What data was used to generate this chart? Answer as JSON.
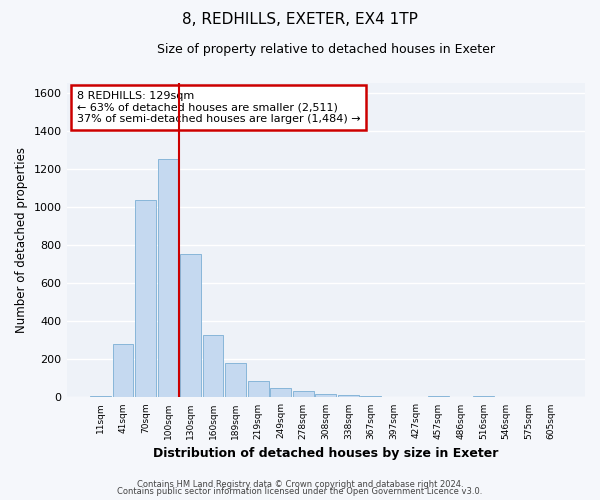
{
  "title": "8, REDHILLS, EXETER, EX4 1TP",
  "subtitle": "Size of property relative to detached houses in Exeter",
  "xlabel": "Distribution of detached houses by size in Exeter",
  "ylabel": "Number of detached properties",
  "bar_labels": [
    "11sqm",
    "41sqm",
    "70sqm",
    "100sqm",
    "130sqm",
    "160sqm",
    "189sqm",
    "219sqm",
    "249sqm",
    "278sqm",
    "308sqm",
    "338sqm",
    "367sqm",
    "397sqm",
    "427sqm",
    "457sqm",
    "486sqm",
    "516sqm",
    "546sqm",
    "575sqm",
    "605sqm"
  ],
  "bar_values": [
    10,
    280,
    1035,
    1250,
    755,
    330,
    180,
    85,
    50,
    35,
    20,
    15,
    10,
    0,
    0,
    10,
    0,
    10,
    0,
    0,
    0
  ],
  "bar_color": "#c5d9f0",
  "bar_edge_color": "#7bafd4",
  "plot_bg_color": "#eef2f8",
  "fig_bg_color": "#f5f7fb",
  "grid_color": "#ffffff",
  "ylim": [
    0,
    1650
  ],
  "yticks": [
    0,
    200,
    400,
    600,
    800,
    1000,
    1200,
    1400,
    1600
  ],
  "property_line_color": "#cc0000",
  "annotation_title": "8 REDHILLS: 129sqm",
  "annotation_line1": "← 63% of detached houses are smaller (2,511)",
  "annotation_line2": "37% of semi-detached houses are larger (1,484) →",
  "annotation_box_facecolor": "#ffffff",
  "annotation_box_edgecolor": "#cc0000",
  "footer1": "Contains HM Land Registry data © Crown copyright and database right 2024.",
  "footer2": "Contains public sector information licensed under the Open Government Licence v3.0."
}
